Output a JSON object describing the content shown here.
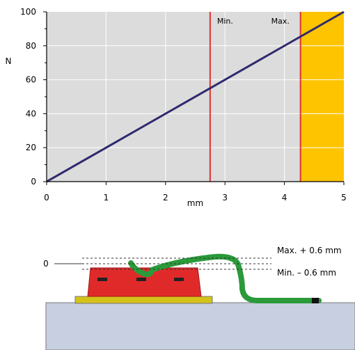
{
  "chart_data": {
    "type": "line",
    "xlabel": "mm",
    "ylabel": "N",
    "xlim": [
      0,
      5
    ],
    "ylim": [
      0,
      100
    ],
    "x_ticks": [
      0,
      1,
      2,
      3,
      4,
      5
    ],
    "y_ticks": [
      0,
      20,
      40,
      60,
      80,
      100
    ],
    "grid": true,
    "series": [
      {
        "x": [
          0,
          5
        ],
        "y": [
          0,
          100
        ],
        "color": "#2d2a6e"
      }
    ],
    "markers": [
      {
        "label": "Min.",
        "x": 2.75,
        "color": "#e03030"
      },
      {
        "label": "Max.",
        "x": 4.27,
        "color": "#e03030"
      }
    ],
    "highlight_region": {
      "x_from": 4.27,
      "x_to": 5,
      "color": "#ffc400"
    },
    "plot_background": "#dcdcdc"
  },
  "diagram": {
    "zero_label": "0",
    "max_label": "Max. + 0.6 mm",
    "min_label": "Min. – 0.6 mm",
    "colors": {
      "base": "#c8cfe0",
      "plate": "#d4c21a",
      "block": "#e02a2a",
      "spring": "#2a9a3a"
    }
  }
}
